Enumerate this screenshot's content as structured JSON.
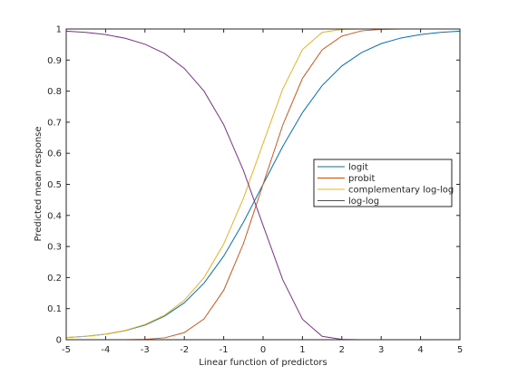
{
  "chart_data": {
    "type": "line",
    "xlabel": "Linear function of predictors",
    "ylabel": "Predicted mean response",
    "xlim": [
      -5,
      5
    ],
    "ylim": [
      0,
      1
    ],
    "xticks": [
      -5,
      -4,
      -3,
      -2,
      -1,
      0,
      1,
      2,
      3,
      4,
      5
    ],
    "yticks": [
      0,
      0.1,
      0.2,
      0.3,
      0.4,
      0.5,
      0.6,
      0.7,
      0.8,
      0.9,
      1
    ],
    "ytick_labels": [
      "0",
      "0.1",
      "0.2",
      "0.3",
      "0.4",
      "0.5",
      "0.6",
      "0.7",
      "0.8",
      "0.9",
      "1"
    ],
    "legend_position": "right",
    "grid": false,
    "x": [
      -5,
      -4.5,
      -4,
      -3.5,
      -3,
      -2.5,
      -2,
      -1.5,
      -1,
      -0.5,
      0,
      0.5,
      1,
      1.5,
      2,
      2.5,
      3,
      3.5,
      4,
      4.5,
      5
    ],
    "series": [
      {
        "name": "logit",
        "color": "#0072bd",
        "values": [
          0.007,
          0.011,
          0.018,
          0.029,
          0.047,
          0.076,
          0.119,
          0.182,
          0.269,
          0.378,
          0.5,
          0.622,
          0.731,
          0.818,
          0.881,
          0.924,
          0.953,
          0.971,
          0.982,
          0.989,
          0.993
        ]
      },
      {
        "name": "probit",
        "color": "#d95319",
        "values": [
          0.0,
          0.0,
          0.0,
          0.0,
          0.001,
          0.006,
          0.023,
          0.067,
          0.159,
          0.309,
          0.5,
          0.691,
          0.841,
          0.933,
          0.977,
          0.994,
          0.999,
          1.0,
          1.0,
          1.0,
          1.0
        ]
      },
      {
        "name": "complementary log-log",
        "color": "#edb120",
        "values": [
          0.007,
          0.011,
          0.018,
          0.03,
          0.049,
          0.079,
          0.127,
          0.2,
          0.308,
          0.455,
          0.632,
          0.807,
          0.934,
          0.989,
          0.999,
          1.0,
          1.0,
          1.0,
          1.0,
          1.0,
          1.0
        ]
      },
      {
        "name": "log-log",
        "color": "#7e2f8e",
        "values": [
          0.993,
          0.989,
          0.982,
          0.97,
          0.951,
          0.921,
          0.873,
          0.8,
          0.692,
          0.545,
          0.368,
          0.193,
          0.066,
          0.011,
          0.001,
          0.0,
          0.0,
          0.0,
          0.0,
          0.0,
          0.0
        ]
      }
    ]
  }
}
